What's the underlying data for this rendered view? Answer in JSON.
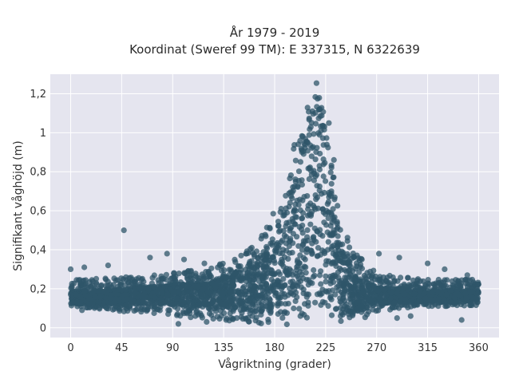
{
  "chart_data": {
    "type": "scatter",
    "title_line1": "År 1979 - 2019",
    "title_line2": "Koordinat (Sweref 99 TM): E 337315, N 6322639",
    "xlabel": "Vågriktning (grader)",
    "ylabel": "Signifikant våghöjd (m)",
    "xlim": [
      -18,
      378
    ],
    "ylim": [
      -0.05,
      1.3
    ],
    "x_ticks": [
      0,
      45,
      90,
      135,
      180,
      225,
      270,
      315,
      360
    ],
    "x_tick_labels": [
      "0",
      "45",
      "90",
      "135",
      "180",
      "225",
      "270",
      "315",
      "360"
    ],
    "y_ticks": [
      0,
      0.2,
      0.4,
      0.6,
      0.8,
      1.0,
      1.2
    ],
    "y_tick_labels": [
      "0",
      "0,2",
      "0,4",
      "0,6",
      "0,8",
      "1",
      "1,2"
    ],
    "grid": true,
    "marker_color": "#2f5669",
    "background_color": "#e5e5ef",
    "envelope": {
      "x": [
        0,
        20,
        45,
        70,
        90,
        110,
        135,
        150,
        165,
        180,
        190,
        200,
        210,
        215,
        220,
        225,
        230,
        235,
        240,
        250,
        260,
        270,
        290,
        315,
        340,
        360
      ],
      "y_low": [
        0.11,
        0.1,
        0.08,
        0.07,
        0.06,
        0.05,
        0.04,
        0.03,
        0.02,
        0.01,
        0.01,
        0.02,
        0.05,
        0.1,
        0.1,
        0.05,
        0.02,
        0.01,
        0.01,
        0.02,
        0.04,
        0.08,
        0.1,
        0.11,
        0.11,
        0.11
      ],
      "y_high": [
        0.25,
        0.25,
        0.26,
        0.27,
        0.28,
        0.3,
        0.33,
        0.38,
        0.45,
        0.6,
        0.78,
        1.0,
        1.18,
        1.26,
        1.27,
        1.2,
        1.0,
        0.72,
        0.55,
        0.4,
        0.33,
        0.28,
        0.26,
        0.25,
        0.25,
        0.25
      ],
      "core_low": [
        0.12,
        0.12,
        0.12,
        0.12,
        0.12,
        0.11,
        0.1,
        0.09,
        0.08,
        0.07,
        0.07,
        0.09,
        0.12,
        0.15,
        0.15,
        0.12,
        0.08,
        0.06,
        0.06,
        0.07,
        0.09,
        0.12,
        0.13,
        0.13,
        0.13,
        0.13
      ],
      "core_high": [
        0.19,
        0.19,
        0.2,
        0.21,
        0.22,
        0.23,
        0.26,
        0.3,
        0.36,
        0.47,
        0.62,
        0.84,
        1.05,
        1.18,
        1.2,
        1.1,
        0.85,
        0.55,
        0.4,
        0.28,
        0.24,
        0.21,
        0.2,
        0.19,
        0.19,
        0.19
      ]
    },
    "outliers": [
      [
        47,
        0.5
      ],
      [
        216,
        0.68
      ],
      [
        0,
        0.3
      ],
      [
        12,
        0.31
      ],
      [
        33,
        0.32
      ],
      [
        70,
        0.36
      ],
      [
        85,
        0.38
      ],
      [
        100,
        0.35
      ],
      [
        118,
        0.33
      ],
      [
        272,
        0.38
      ],
      [
        290,
        0.36
      ],
      [
        315,
        0.33
      ],
      [
        330,
        0.3
      ],
      [
        350,
        0.27
      ],
      [
        95,
        0.02
      ],
      [
        288,
        0.05
      ],
      [
        120,
        0.03
      ],
      [
        300,
        0.06
      ],
      [
        345,
        0.04
      ],
      [
        10,
        0.09
      ]
    ]
  }
}
